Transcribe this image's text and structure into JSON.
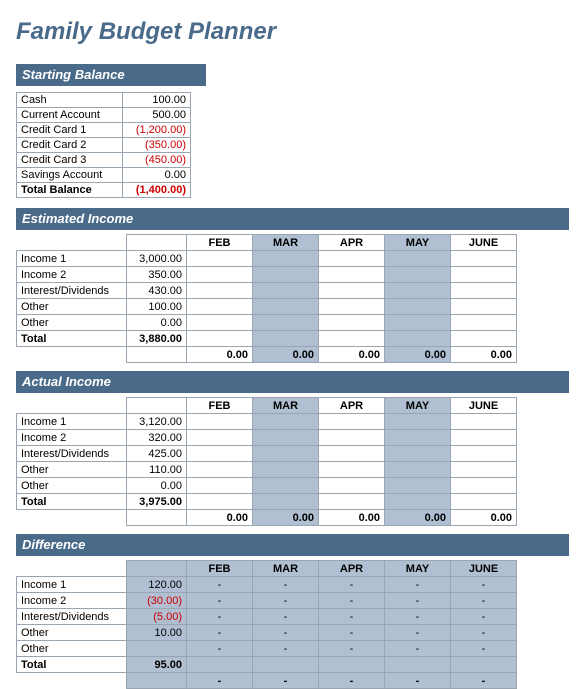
{
  "title": "Family Budget Planner",
  "colors": {
    "header_bg": "#4a6a8a",
    "header_text": "#ffffff",
    "title_text": "#4a6a8a",
    "shaded_bg": "#b0bfd2",
    "border": "#9aa5b2",
    "negative": "#cc0000",
    "text": "#000000",
    "bg": "#ffffff"
  },
  "months": [
    "FEB",
    "MAR",
    "APR",
    "MAY",
    "JUNE"
  ],
  "starting_balance": {
    "header": "Starting Balance",
    "rows": [
      {
        "label": "Cash",
        "value": "100.00",
        "neg": false
      },
      {
        "label": "Current Account",
        "value": "500.00",
        "neg": false
      },
      {
        "label": "Credit Card 1",
        "value": "(1,200.00)",
        "neg": true
      },
      {
        "label": "Credit Card 2",
        "value": "(350.00)",
        "neg": true
      },
      {
        "label": "Credit Card 3",
        "value": "(450.00)",
        "neg": true
      },
      {
        "label": "Savings Account",
        "value": "0.00",
        "neg": false
      }
    ],
    "total_label": "Total Balance",
    "total_value": "(1,400.00)",
    "total_neg": true
  },
  "estimated_income": {
    "header": "Estimated Income",
    "rows": [
      {
        "label": "Income 1",
        "value": "3,000.00"
      },
      {
        "label": "Income 2",
        "value": "350.00"
      },
      {
        "label": "Interest/Dividends",
        "value": "430.00"
      },
      {
        "label": "Other",
        "value": "100.00"
      },
      {
        "label": "Other",
        "value": "0.00"
      }
    ],
    "total_label": "Total",
    "total_value": "3,880.00",
    "month_totals": [
      "0.00",
      "0.00",
      "0.00",
      "0.00",
      "0.00"
    ]
  },
  "actual_income": {
    "header": "Actual Income",
    "rows": [
      {
        "label": "Income 1",
        "value": "3,120.00"
      },
      {
        "label": "Income 2",
        "value": "320.00"
      },
      {
        "label": "Interest/Dividends",
        "value": "425.00"
      },
      {
        "label": "Other",
        "value": "110.00"
      },
      {
        "label": "Other",
        "value": "0.00"
      }
    ],
    "total_label": "Total",
    "total_value": "3,975.00",
    "month_totals": [
      "0.00",
      "0.00",
      "0.00",
      "0.00",
      "0.00"
    ]
  },
  "difference": {
    "header": "Difference",
    "rows": [
      {
        "label": "Income 1",
        "value": "120.00",
        "neg": false
      },
      {
        "label": "Income 2",
        "value": "(30.00)",
        "neg": true
      },
      {
        "label": "Interest/Dividends",
        "value": "(5.00)",
        "neg": true
      },
      {
        "label": "Other",
        "value": "10.00",
        "neg": false
      },
      {
        "label": "Other",
        "value": "",
        "neg": false
      }
    ],
    "total_label": "Total",
    "total_value": "95.00",
    "month_cells": [
      "-",
      "-",
      "-",
      "-",
      "-"
    ],
    "month_totals": [
      "-",
      "-",
      "-",
      "-",
      "-"
    ]
  }
}
